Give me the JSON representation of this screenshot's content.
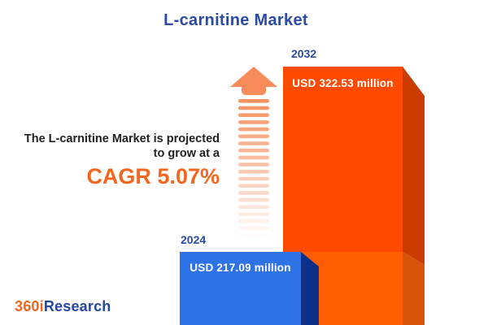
{
  "header": {
    "title": "L-carnitine Market"
  },
  "annotation": {
    "line1": "The L-carnitine Market is projected",
    "line2": "to grow at a",
    "cagr_text": "CAGR 5.07%"
  },
  "chart_data": {
    "type": "bar",
    "title": "L-carnitine Market",
    "categories": [
      "2024",
      "2032"
    ],
    "values": [
      217.09,
      322.53
    ],
    "unit": "USD million",
    "value_labels": [
      "USD 217.09 million",
      "USD 322.53 million"
    ],
    "cagr_percent": 5.07,
    "bar_colors": [
      "#2e73e6",
      "#ff4a00"
    ],
    "axes": "hidden",
    "legend": "none",
    "style": "3d-infographic-bars-with-growth-arrow"
  },
  "footer": {
    "logo_prefix": "360i",
    "logo_suffix": "Research"
  },
  "colors": {
    "title_blue": "#2b4aa5",
    "accent_orange": "#f4661f",
    "bar_blue_face": "#2e73e6",
    "bar_blue_side": "#0d3189",
    "bar_orange_face_top": "#ff4a00",
    "bar_orange_face_bottom": "#fe5e00",
    "bar_orange_side_top": "#cb3c00",
    "bar_orange_side_bottom": "#d65307",
    "arrow_orange": "#f78b59",
    "text_dark": "#222222",
    "label_white": "#ffffff"
  }
}
